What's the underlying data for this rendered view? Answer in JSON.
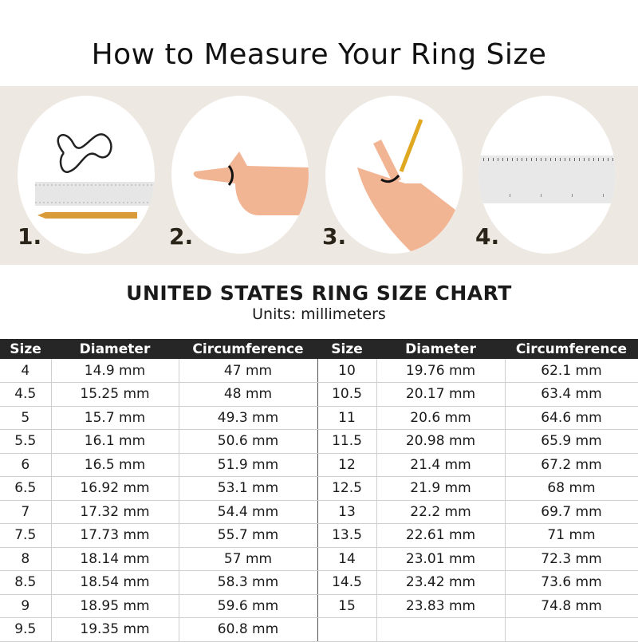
{
  "title": "How to Measure Your Ring Size",
  "steps": [
    {
      "number": "1.",
      "icon": "string-ruler-pencil-icon"
    },
    {
      "number": "2.",
      "icon": "finger-wrap-icon"
    },
    {
      "number": "3.",
      "icon": "mark-string-icon"
    },
    {
      "number": "4.",
      "icon": "ruler-icon"
    }
  ],
  "chart": {
    "title": "UNITED STATES RING SIZE CHART",
    "units": "Units: millimeters",
    "headers": [
      "Size",
      "Diameter",
      "Circumference",
      "Size",
      "Diameter",
      "Circumference"
    ],
    "rows": [
      [
        "4",
        "14.9 mm",
        "47 mm",
        "10",
        "19.76 mm",
        "62.1 mm"
      ],
      [
        "4.5",
        "15.25 mm",
        "48 mm",
        "10.5",
        "20.17 mm",
        "63.4 mm"
      ],
      [
        "5",
        "15.7 mm",
        "49.3 mm",
        "11",
        "20.6 mm",
        "64.6 mm"
      ],
      [
        "5.5",
        "16.1 mm",
        "50.6 mm",
        "11.5",
        "20.98 mm",
        "65.9 mm"
      ],
      [
        "6",
        "16.5 mm",
        "51.9 mm",
        "12",
        "21.4 mm",
        "67.2 mm"
      ],
      [
        "6.5",
        "16.92 mm",
        "53.1 mm",
        "12.5",
        "21.9 mm",
        "68 mm"
      ],
      [
        "7",
        "17.32 mm",
        "54.4 mm",
        "13",
        "22.2 mm",
        "69.7 mm"
      ],
      [
        "7.5",
        "17.73 mm",
        "55.7 mm",
        "13.5",
        "22.61 mm",
        "71 mm"
      ],
      [
        "8",
        "18.14 mm",
        "57 mm",
        "14",
        "23.01 mm",
        "72.3 mm"
      ],
      [
        "8.5",
        "18.54 mm",
        "58.3 mm",
        "14.5",
        "23.42 mm",
        "73.6 mm"
      ],
      [
        "9",
        "18.95 mm",
        "59.6 mm",
        "15",
        "23.83 mm",
        "74.8 mm"
      ],
      [
        "9.5",
        "19.35 mm",
        "60.8 mm",
        "",
        "",
        ""
      ]
    ]
  }
}
